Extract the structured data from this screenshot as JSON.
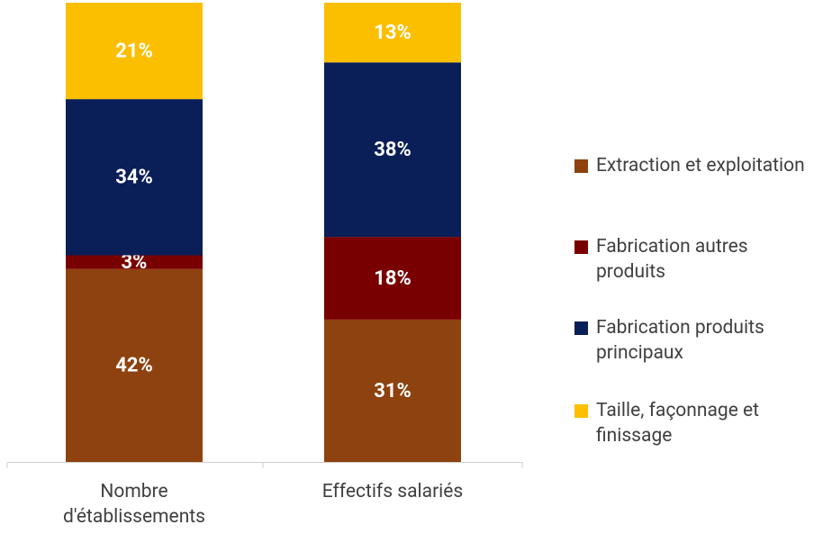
{
  "chart_data": {
    "type": "stacked_bar",
    "categories": [
      "Nombre d'établissements",
      "Effectifs salariés"
    ],
    "ylim": [
      0,
      100
    ],
    "series": [
      {
        "name": "Extraction et exploitation",
        "color": "#8e420f",
        "values": [
          42,
          31
        ],
        "value_labels": [
          "42%",
          "31%"
        ]
      },
      {
        "name": "Fabrication autres produits",
        "color": "#780000",
        "values": [
          3,
          18
        ],
        "value_labels": [
          "3%",
          "18%"
        ]
      },
      {
        "name": "Fabrication produits principaux",
        "color": "#0a1e57",
        "values": [
          34,
          38
        ],
        "value_labels": [
          "34%",
          "38%"
        ]
      },
      {
        "name": "Taille, façonnage et finissage",
        "color": "#fcbf00",
        "values": [
          21,
          13
        ],
        "value_labels": [
          "21%",
          "13%"
        ]
      }
    ]
  }
}
